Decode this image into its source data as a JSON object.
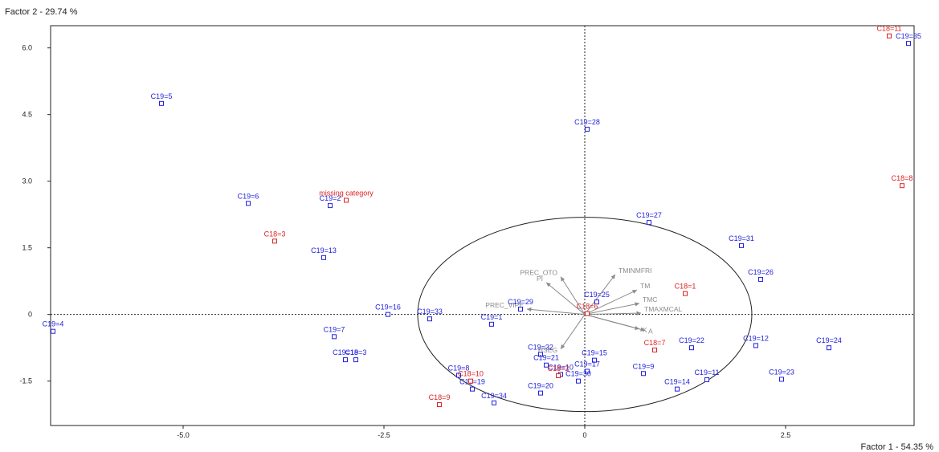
{
  "chart_data": {
    "type": "scatter",
    "ylabel": "Factor 2  -  29.74 %",
    "xlabel": "Factor 1  -  54.35 %",
    "xlim": [
      -6.65,
      4.1
    ],
    "ylim": [
      -2.5,
      6.5
    ],
    "x_ticks": [
      {
        "value": -5.0,
        "label": "-5.0"
      },
      {
        "value": -2.5,
        "label": "-2.5"
      },
      {
        "value": 0,
        "label": "0"
      },
      {
        "value": 2.5,
        "label": "2.5"
      }
    ],
    "y_ticks": [
      {
        "value": 6.0,
        "label": "6.0"
      },
      {
        "value": 4.5,
        "label": "4.5"
      },
      {
        "value": 3.0,
        "label": "3.0"
      },
      {
        "value": 1.5,
        "label": "1.5"
      },
      {
        "value": 0,
        "label": "0"
      },
      {
        "value": -1.5,
        "label": "-1.5"
      }
    ],
    "colors": {
      "c19": "#2222dd",
      "c18": "#dd2222",
      "variables": "#8a8a8a",
      "frame": "#222222"
    },
    "series": [
      {
        "name": "C19",
        "color": "#2222dd",
        "points": [
          {
            "label": "C19=5",
            "x": -5.27,
            "y": 4.75
          },
          {
            "label": "C19=28",
            "x": 0.03,
            "y": 4.17
          },
          {
            "label": "C19=35",
            "x": 4.03,
            "y": 6.1
          },
          {
            "label": "C19=6",
            "x": -4.19,
            "y": 2.5
          },
          {
            "label": "C19=2",
            "x": -3.17,
            "y": 2.45
          },
          {
            "label": "C19=27",
            "x": 0.8,
            "y": 2.07
          },
          {
            "label": "C19=31",
            "x": 1.95,
            "y": 1.55
          },
          {
            "label": "C19=13",
            "x": -3.25,
            "y": 1.28
          },
          {
            "label": "C19=26",
            "x": 2.19,
            "y": 0.79
          },
          {
            "label": "C19=16",
            "x": -2.45,
            "y": 0.0
          },
          {
            "label": "C19=4",
            "x": -6.62,
            "y": -0.38
          },
          {
            "label": "C19=33",
            "x": -1.93,
            "y": -0.1
          },
          {
            "label": "C19=1",
            "x": -1.16,
            "y": -0.22
          },
          {
            "label": "C19=29",
            "x": -0.8,
            "y": 0.12
          },
          {
            "label": "C19=25",
            "x": 0.15,
            "y": 0.28
          },
          {
            "label": "C19=7",
            "x": -3.12,
            "y": -0.5
          },
          {
            "label": "C19=18",
            "x": -2.98,
            "y": -1.02
          },
          {
            "label": "C19=3",
            "x": -2.85,
            "y": -1.02
          },
          {
            "label": "C19=32",
            "x": -0.55,
            "y": -0.9
          },
          {
            "label": "C19=21",
            "x": -0.48,
            "y": -1.14
          },
          {
            "label": "C19=15",
            "x": 0.12,
            "y": -1.03
          },
          {
            "label": "C19=17",
            "x": 0.03,
            "y": -1.28
          },
          {
            "label": "C19=10",
            "x": -0.3,
            "y": -1.35
          },
          {
            "label": "C19=30",
            "x": -0.08,
            "y": -1.5
          },
          {
            "label": "C19=20",
            "x": -0.55,
            "y": -1.77
          },
          {
            "label": "C19=22",
            "x": 1.33,
            "y": -0.75
          },
          {
            "label": "C19=12",
            "x": 2.13,
            "y": -0.7
          },
          {
            "label": "C19=24",
            "x": 3.04,
            "y": -0.75
          },
          {
            "label": "C19=9",
            "x": 0.73,
            "y": -1.33
          },
          {
            "label": "C19=14",
            "x": 1.15,
            "y": -1.68
          },
          {
            "label": "C19=11",
            "x": 1.52,
            "y": -1.47
          },
          {
            "label": "C19=23",
            "x": 2.45,
            "y": -1.46
          },
          {
            "label": "C19=8",
            "x": -1.57,
            "y": -1.37
          },
          {
            "label": "C19=19",
            "x": -1.4,
            "y": -1.68
          },
          {
            "label": "C19=34",
            "x": -1.13,
            "y": -1.99
          }
        ]
      },
      {
        "name": "C18",
        "color": "#dd2222",
        "points": [
          {
            "label": "C18=11",
            "x": 3.79,
            "y": 6.27
          },
          {
            "label": "C18=8",
            "x": 3.95,
            "y": 2.9
          },
          {
            "label": "missing category",
            "x": -2.97,
            "y": 2.57
          },
          {
            "label": "C18=3",
            "x": -3.86,
            "y": 1.65
          },
          {
            "label": "C18=1",
            "x": 1.25,
            "y": 0.47
          },
          {
            "label": "C18=6",
            "x": 0.03,
            "y": 0.02
          },
          {
            "label": "C18=7",
            "x": 0.87,
            "y": -0.8
          },
          {
            "label": "C18=2",
            "x": -0.33,
            "y": -1.38
          },
          {
            "label": "C18=10",
            "x": -1.42,
            "y": -1.5
          },
          {
            "label": "C18=9",
            "x": -1.81,
            "y": -2.03
          }
        ]
      }
    ],
    "variables": [
      {
        "label": "PREC_OTO",
        "x": -0.3,
        "y": 0.85
      },
      {
        "label": "PI",
        "x": -0.48,
        "y": 0.72
      },
      {
        "label": "TMINMFRI",
        "x": 0.38,
        "y": 0.9
      },
      {
        "label": "TM",
        "x": 0.65,
        "y": 0.55
      },
      {
        "label": "TMC",
        "x": 0.68,
        "y": 0.25
      },
      {
        "label": "TMAXMCAL",
        "x": 0.7,
        "y": 0.03
      },
      {
        "label": "PREC_VIPE",
        "x": -0.72,
        "y": 0.12
      },
      {
        "label": "K",
        "x": 0.68,
        "y": -0.33
      },
      {
        "label": "A",
        "x": 0.75,
        "y": -0.36
      },
      {
        "label": "HSEG",
        "x": -0.3,
        "y": -0.78
      }
    ]
  }
}
